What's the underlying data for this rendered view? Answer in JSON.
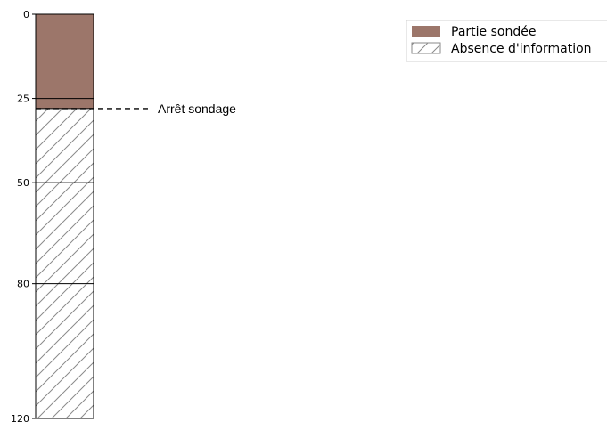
{
  "log": {
    "depth_min": 0,
    "depth_max": 120,
    "probed_to": 25,
    "stop_depth": 28,
    "layer_boundaries": [
      25,
      50,
      80
    ],
    "ticks": [
      {
        "value": 0,
        "label": "0"
      },
      {
        "value": 25,
        "label": "25"
      },
      {
        "value": 50,
        "label": "50"
      },
      {
        "value": 80,
        "label": "80"
      },
      {
        "value": 120,
        "label": "120"
      }
    ],
    "stop_label": "Arrêt sondage"
  },
  "legend": {
    "items": [
      {
        "key": "probed",
        "label": "Partie sondée",
        "color": "#9c766a"
      },
      {
        "key": "no-info",
        "label": "Absence d'information",
        "color": "#ffffff"
      }
    ]
  },
  "colors": {
    "probed": "#9c766a",
    "hatch": "#8a8a8a",
    "outline": "#000000"
  }
}
